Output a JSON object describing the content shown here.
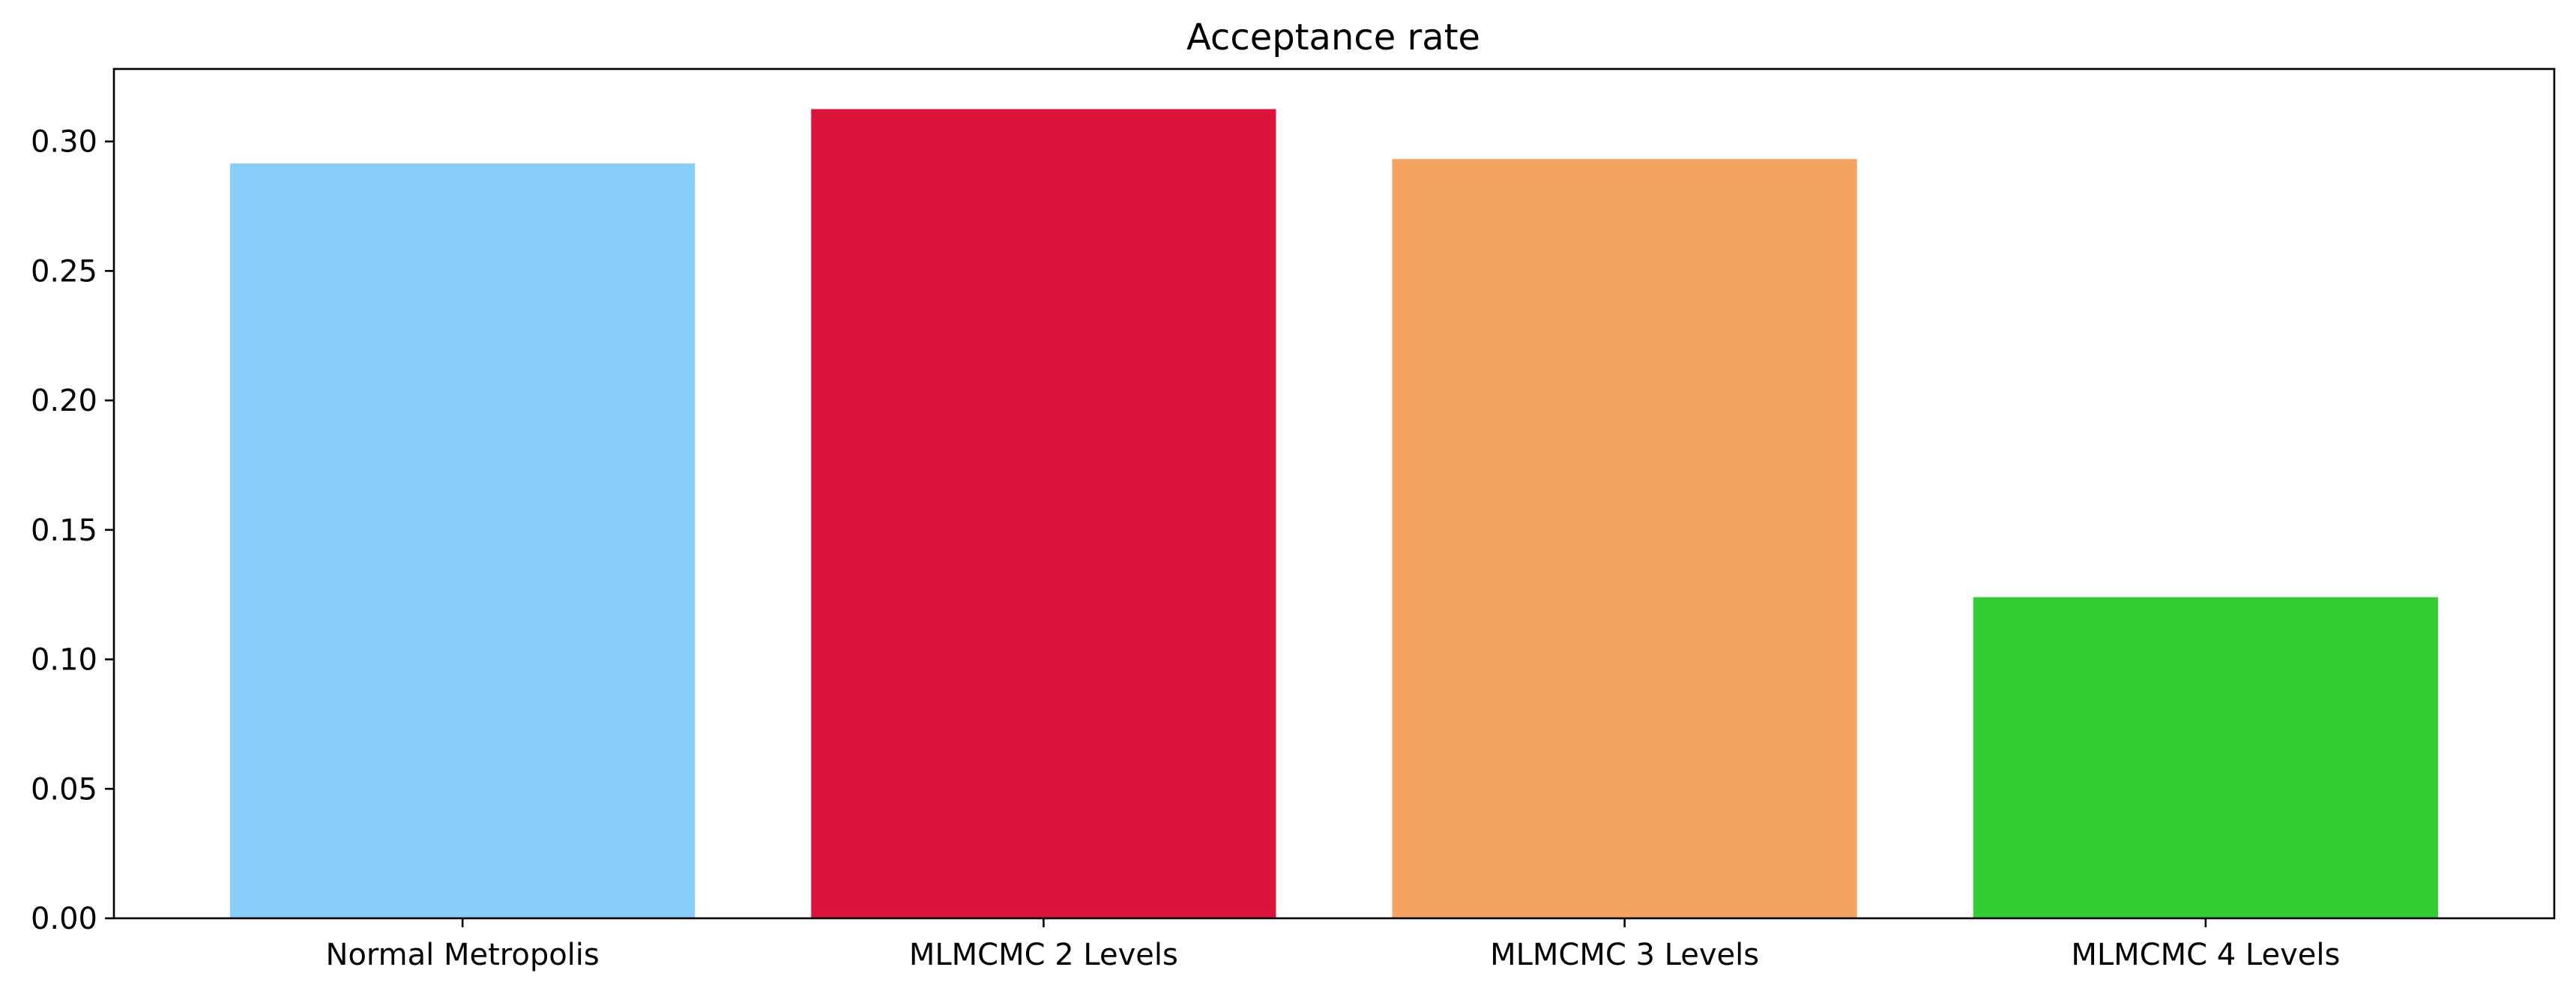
{
  "chart_data": {
    "type": "bar",
    "title": "Acceptance rate",
    "xlabel": "",
    "ylabel": "",
    "categories": [
      "Normal Metropolis",
      "MLMCMC 2 Levels",
      "MLMCMC 3 Levels",
      "MLMCMC 4 Levels"
    ],
    "values": [
      0.2915,
      0.3125,
      0.2932,
      0.124
    ],
    "colors": [
      "#87CEFA",
      "#DC143C",
      "#F4A460",
      "#32CD32"
    ],
    "ylim": [
      0,
      0.328
    ],
    "yticks": [
      0.0,
      0.05,
      0.1,
      0.15,
      0.2,
      0.25,
      0.3
    ],
    "ytick_labels": [
      "0.00",
      "0.05",
      "0.10",
      "0.15",
      "0.20",
      "0.25",
      "0.30"
    ],
    "grid": false,
    "legend": "none"
  }
}
